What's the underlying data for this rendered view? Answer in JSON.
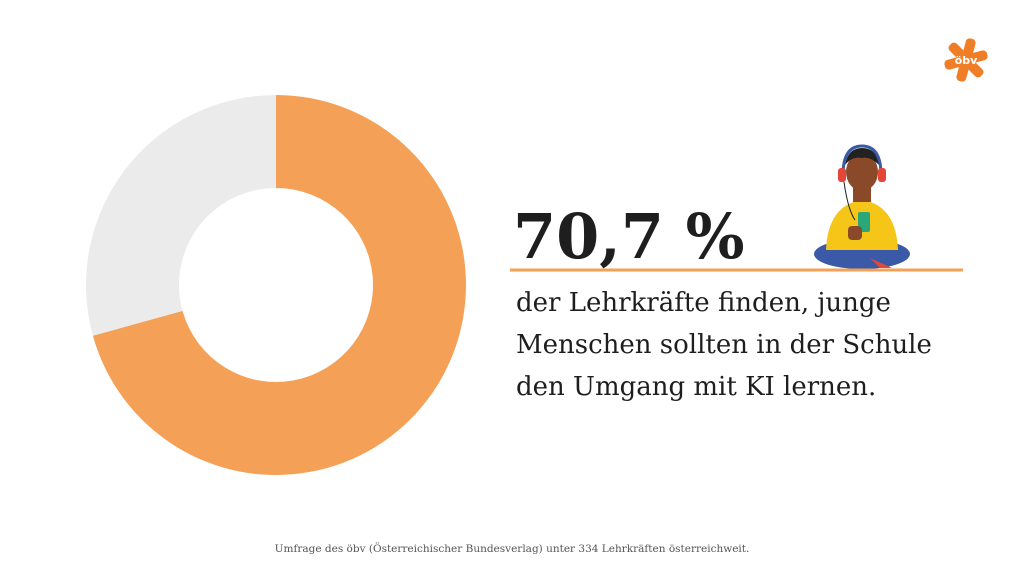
{
  "chart_data": {
    "type": "donut",
    "values": [
      70.7,
      29.3
    ],
    "value_labels": [
      "70,7 %",
      null
    ],
    "colors": [
      "#f4a057",
      "#ebebeb"
    ],
    "description": [
      "der Lehrkräfte finden, junge",
      "Menschen sollten in der Schule",
      "den Umgang mit KI lernen."
    ],
    "source": "Umfrage des öbv (Österreichischer Bundesverlag) unter 334 Lehrkräften österreichweit."
  },
  "logo": "öbv"
}
